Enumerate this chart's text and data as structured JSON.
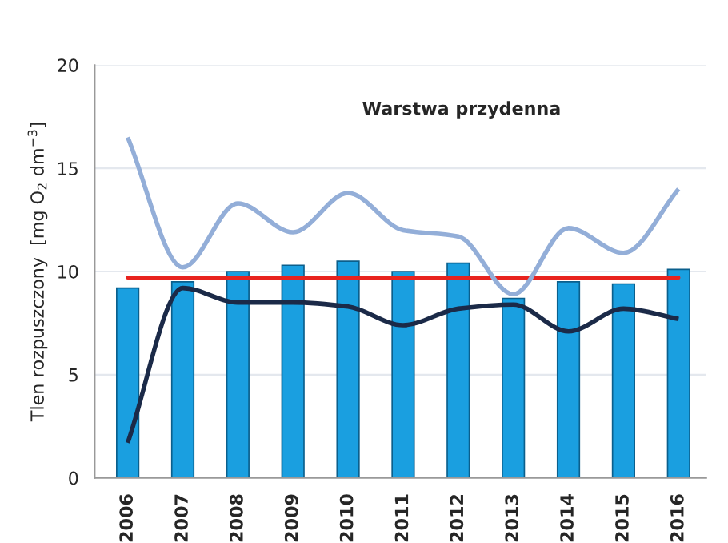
{
  "chart_data": {
    "type": "bar",
    "ylabel": "Tlen rozpuszczony  [mg O$_{2}$ dm$^{−3}$]",
    "annotations": [
      "Warstwa przydenna"
    ],
    "categories": [
      "2006",
      "2007",
      "2008",
      "2009",
      "2010",
      "2011",
      "2012",
      "2013",
      "2014",
      "2015",
      "2016"
    ],
    "series": [
      {
        "color": "#1a9fe0",
        "values": [
          9.2,
          9.5,
          10.0,
          10.3,
          10.5,
          10.0,
          10.4,
          8.7,
          9.5,
          9.4,
          10.1
        ]
      },
      {
        "type": "line",
        "color": "#93aed8",
        "values": [
          16.5,
          10.2,
          13.3,
          11.9,
          13.8,
          12.0,
          11.7,
          8.9,
          12.1,
          10.9,
          14.0
        ]
      },
      {
        "type": "line",
        "color": "#1b2a48",
        "values": [
          1.7,
          9.2,
          8.5,
          8.5,
          8.3,
          7.4,
          8.2,
          8.4,
          7.1,
          8.2,
          7.7
        ]
      }
    ],
    "ref_lines": [
      {
        "axis": "y",
        "value": 9.7,
        "color": "#e8231e"
      }
    ],
    "ylim": [
      0,
      20
    ],
    "yticks": [
      0,
      5,
      10,
      15,
      20
    ],
    "grid": "y",
    "marker": "none",
    "line_style": "solid"
  }
}
